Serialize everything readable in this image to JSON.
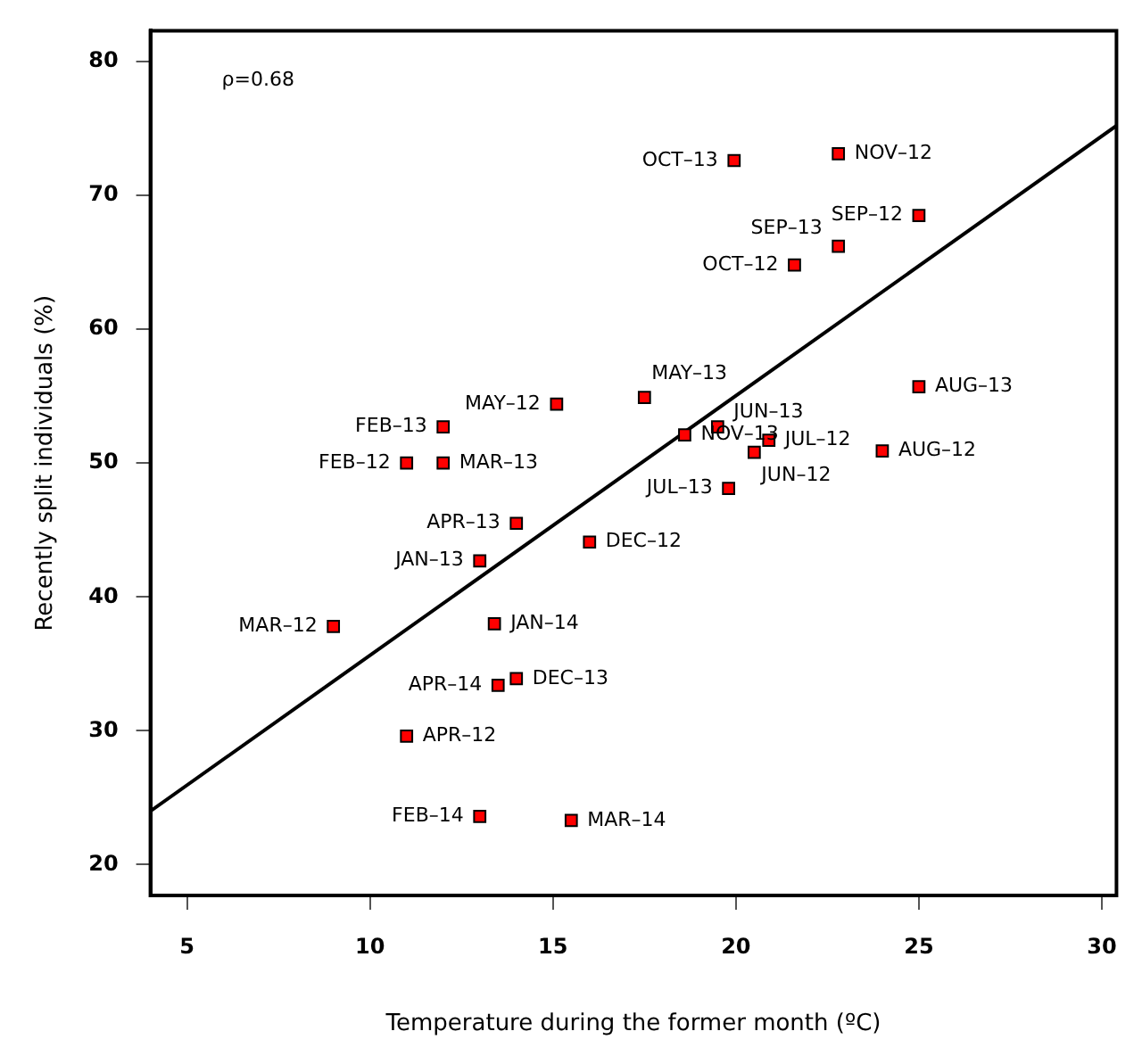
{
  "chart_data": {
    "type": "scatter",
    "xlabel": "Temperature during the former month (ºC)",
    "ylabel": "Recently split individuals (%)",
    "xlim": [
      4,
      30.4
    ],
    "ylim": [
      17.7,
      82.3
    ],
    "xticks": [
      5,
      10,
      15,
      20,
      25,
      30
    ],
    "yticks": [
      20,
      30,
      40,
      50,
      60,
      70,
      80
    ],
    "grid": false,
    "legend": false,
    "marker": "square",
    "series": [
      {
        "type": "scatter",
        "color": "#ff0000",
        "x": [
          19.95,
          22.8,
          25.0,
          22.8,
          21.6,
          25.0,
          17.5,
          15.1,
          12.0,
          11.0,
          12.0,
          19.5,
          18.6,
          20.9,
          20.5,
          24.0,
          19.8,
          14.0,
          16.0,
          13.0,
          9.0,
          13.4,
          14.0,
          13.5,
          11.0,
          13.0,
          15.5
        ],
        "values": [
          72.6,
          73.1,
          68.5,
          66.2,
          64.8,
          55.7,
          54.9,
          54.4,
          52.7,
          50.0,
          50.0,
          52.7,
          52.1,
          51.7,
          50.8,
          50.9,
          48.1,
          45.5,
          44.1,
          42.7,
          37.8,
          38.0,
          33.9,
          33.4,
          29.6,
          23.6,
          23.3
        ]
      },
      {
        "type": "line",
        "color": "#000000",
        "line_style": "solid",
        "marker": "none",
        "x": [
          4,
          30.4
        ],
        "values": [
          24.0,
          75.2
        ]
      }
    ],
    "annotations": [
      "ρ=0.68",
      {
        "text": "OCT–13",
        "x": 19.95,
        "y": 72.6
      },
      {
        "text": "NOV–12",
        "x": 22.8,
        "y": 73.1
      },
      {
        "text": "SEP–12",
        "x": 25.0,
        "y": 68.5
      },
      {
        "text": "SEP–13",
        "x": 22.8,
        "y": 66.2
      },
      {
        "text": "OCT–12",
        "x": 21.6,
        "y": 64.8
      },
      {
        "text": "AUG–13",
        "x": 25.0,
        "y": 55.7
      },
      {
        "text": "MAY–13",
        "x": 17.5,
        "y": 54.9
      },
      {
        "text": "MAY–12",
        "x": 15.1,
        "y": 54.4
      },
      {
        "text": "FEB–13",
        "x": 12.0,
        "y": 52.7
      },
      {
        "text": "FEB–12",
        "x": 11.0,
        "y": 50.0
      },
      {
        "text": "MAR–13",
        "x": 12.0,
        "y": 50.0
      },
      {
        "text": "JUN–13",
        "x": 19.5,
        "y": 52.7
      },
      {
        "text": "NOV–13",
        "x": 18.6,
        "y": 52.1
      },
      {
        "text": "JUL–12",
        "x": 20.9,
        "y": 51.7
      },
      {
        "text": "JUN–12",
        "x": 20.5,
        "y": 50.8
      },
      {
        "text": "AUG–12",
        "x": 24.0,
        "y": 50.9
      },
      {
        "text": "JUL–13",
        "x": 19.8,
        "y": 48.1
      },
      {
        "text": "APR–13",
        "x": 14.0,
        "y": 45.5
      },
      {
        "text": "DEC–12",
        "x": 16.0,
        "y": 44.1
      },
      {
        "text": "JAN–13",
        "x": 13.0,
        "y": 42.7
      },
      {
        "text": "MAR–12",
        "x": 9.0,
        "y": 37.8
      },
      {
        "text": "JAN–14",
        "x": 13.4,
        "y": 38.0
      },
      {
        "text": "DEC–13",
        "x": 14.0,
        "y": 33.9
      },
      {
        "text": "APR–14",
        "x": 13.5,
        "y": 33.4
      },
      {
        "text": "APR–12",
        "x": 11.0,
        "y": 29.6
      },
      {
        "text": "FEB–14",
        "x": 13.0,
        "y": 23.6
      },
      {
        "text": "MAR–14",
        "x": 15.5,
        "y": 23.3
      }
    ]
  }
}
